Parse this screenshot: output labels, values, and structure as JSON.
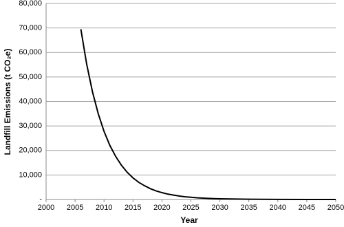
{
  "chart_data": {
    "type": "line",
    "x_label": "Year",
    "y_label": "Landfill Emissions (t CO₂e)",
    "x": [
      2006,
      2007,
      2008,
      2009,
      2010,
      2011,
      2012,
      2013,
      2014,
      2015,
      2016,
      2017,
      2018,
      2019,
      2020,
      2021,
      2022,
      2023,
      2024,
      2025,
      2026,
      2027,
      2028,
      2029,
      2030,
      2035,
      2040,
      2045,
      2050
    ],
    "series": [
      {
        "color": "#000000",
        "values": [
          69500,
          55300,
          44000,
          35000,
          27800,
          22100,
          17600,
          14000,
          11100,
          8800,
          7000,
          5600,
          4400,
          3500,
          2800,
          2200,
          1800,
          1400,
          1100,
          900,
          700,
          560,
          440,
          350,
          280,
          90,
          30,
          10,
          3
        ]
      }
    ],
    "xlim": [
      2000,
      2050
    ],
    "xticks": [
      2000,
      2005,
      2010,
      2015,
      2020,
      2025,
      2030,
      2035,
      2040,
      2045,
      2050
    ],
    "ylim": [
      0,
      80000
    ],
    "yticks": [
      {
        "value": 0,
        "label": "-"
      },
      {
        "value": 10000,
        "label": "10,000"
      },
      {
        "value": 20000,
        "label": "20,000"
      },
      {
        "value": 30000,
        "label": "30,000"
      },
      {
        "value": 40000,
        "label": "40,000"
      },
      {
        "value": 50000,
        "label": "50,000"
      },
      {
        "value": 60000,
        "label": "60,000"
      },
      {
        "value": 70000,
        "label": "70,000"
      },
      {
        "value": 80000,
        "label": "80,000"
      }
    ],
    "grid": true
  }
}
